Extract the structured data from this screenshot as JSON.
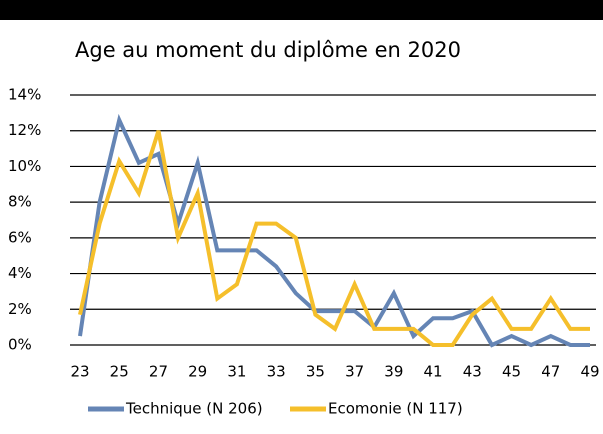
{
  "chart_data": {
    "type": "line",
    "title": "Age au moment du diplôme en 2020",
    "x": [
      23,
      24,
      25,
      26,
      27,
      28,
      29,
      30,
      31,
      32,
      33,
      34,
      35,
      36,
      37,
      38,
      39,
      40,
      41,
      42,
      43,
      44,
      45,
      46,
      47,
      48,
      49
    ],
    "series": [
      {
        "name": "Technique (N 206)",
        "color": "#6585b5",
        "values": [
          0.5,
          8,
          12.6,
          10.2,
          10.7,
          6.8,
          10.2,
          5.3,
          5.3,
          5.3,
          4.4,
          2.9,
          1.9,
          1.9,
          1.9,
          1.0,
          2.9,
          0.5,
          1.5,
          1.5,
          1.9,
          0,
          0.5,
          0,
          0.5,
          0,
          0
        ]
      },
      {
        "name": "Ecomonie (N 117)",
        "color": "#f5bf2b",
        "values": [
          1.7,
          6.8,
          10.3,
          8.5,
          12.0,
          6.0,
          8.5,
          2.6,
          3.4,
          6.8,
          6.8,
          6.0,
          1.7,
          0.9,
          3.4,
          0.9,
          0.9,
          0.9,
          0,
          0,
          1.7,
          2.6,
          0.9,
          0.9,
          2.6,
          0.9,
          0.9
        ]
      }
    ],
    "xlim": [
      23,
      49
    ],
    "xticks": [
      23,
      25,
      27,
      29,
      31,
      33,
      35,
      37,
      39,
      41,
      43,
      45,
      47,
      49
    ],
    "ylim": [
      0,
      14
    ],
    "yticks": [
      {
        "value": 0,
        "label": "0%"
      },
      {
        "value": 2,
        "label": "2%"
      },
      {
        "value": 4,
        "label": "4%"
      },
      {
        "value": 6,
        "label": "6%"
      },
      {
        "value": 8,
        "label": "8%"
      },
      {
        "value": 10,
        "label": "10%"
      },
      {
        "value": 12,
        "label": "12%"
      },
      {
        "value": 14,
        "label": "14%"
      }
    ],
    "grid": true,
    "legend": "bottom"
  }
}
